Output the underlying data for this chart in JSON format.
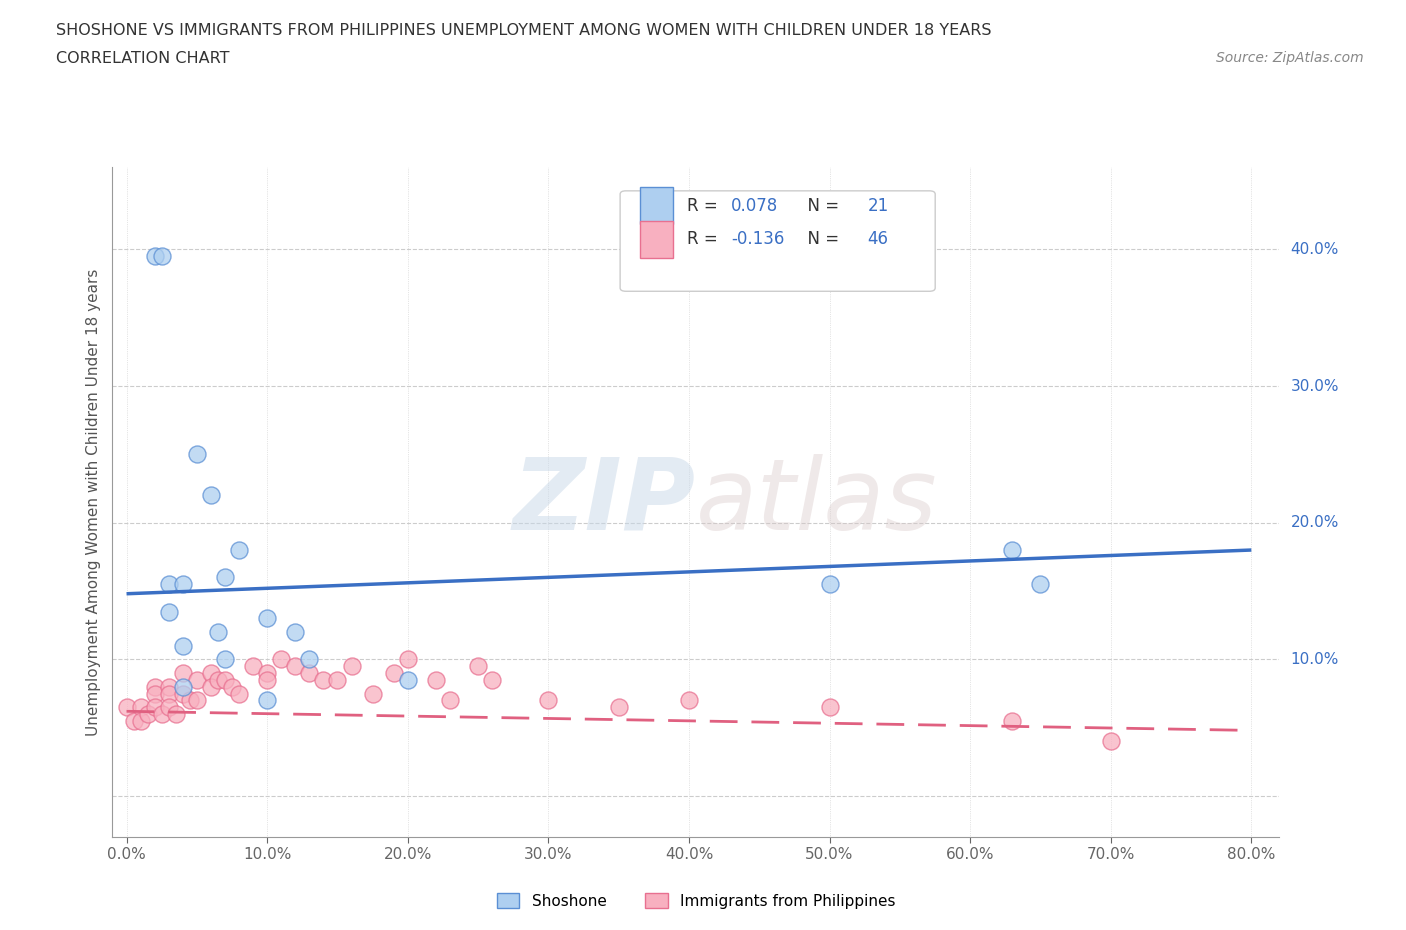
{
  "title_line1": "SHOSHONE VS IMMIGRANTS FROM PHILIPPINES UNEMPLOYMENT AMONG WOMEN WITH CHILDREN UNDER 18 YEARS",
  "title_line2": "CORRELATION CHART",
  "source_text": "Source: ZipAtlas.com",
  "ylabel": "Unemployment Among Women with Children Under 18 years",
  "xlim": [
    -0.01,
    0.82
  ],
  "ylim": [
    -0.03,
    0.46
  ],
  "xticks": [
    0.0,
    0.1,
    0.2,
    0.3,
    0.4,
    0.5,
    0.6,
    0.7,
    0.8
  ],
  "xticklabels": [
    "0.0%",
    "10.0%",
    "20.0%",
    "30.0%",
    "40.0%",
    "50.0%",
    "60.0%",
    "70.0%",
    "80.0%"
  ],
  "yticks": [
    0.0,
    0.1,
    0.2,
    0.3,
    0.4
  ],
  "yticklabels": [
    "",
    "10.0%",
    "20.0%",
    "30.0%",
    "40.0%"
  ],
  "shoshone_color": "#aecff0",
  "philippines_color": "#f8b0c0",
  "shoshone_edge_color": "#5b8fd4",
  "philippines_edge_color": "#e87090",
  "shoshone_line_color": "#3a6fc4",
  "philippines_line_color": "#e06080",
  "R_shoshone": 0.078,
  "N_shoshone": 21,
  "R_philippines": -0.136,
  "N_philippines": 46,
  "watermark_zip": "ZIP",
  "watermark_atlas": "atlas",
  "shoshone_x": [
    0.02,
    0.025,
    0.03,
    0.03,
    0.04,
    0.04,
    0.04,
    0.05,
    0.06,
    0.065,
    0.07,
    0.07,
    0.08,
    0.1,
    0.1,
    0.12,
    0.13,
    0.2,
    0.5,
    0.63,
    0.65
  ],
  "shoshone_y": [
    0.395,
    0.395,
    0.155,
    0.135,
    0.155,
    0.11,
    0.08,
    0.25,
    0.22,
    0.12,
    0.16,
    0.1,
    0.18,
    0.13,
    0.07,
    0.12,
    0.1,
    0.085,
    0.155,
    0.18,
    0.155
  ],
  "philippines_x": [
    0.0,
    0.005,
    0.01,
    0.01,
    0.015,
    0.02,
    0.02,
    0.02,
    0.025,
    0.03,
    0.03,
    0.03,
    0.035,
    0.04,
    0.04,
    0.045,
    0.05,
    0.05,
    0.06,
    0.06,
    0.065,
    0.07,
    0.075,
    0.08,
    0.09,
    0.1,
    0.1,
    0.11,
    0.12,
    0.13,
    0.14,
    0.15,
    0.16,
    0.175,
    0.19,
    0.2,
    0.22,
    0.23,
    0.25,
    0.26,
    0.3,
    0.35,
    0.4,
    0.5,
    0.63,
    0.7
  ],
  "philippines_y": [
    0.065,
    0.055,
    0.065,
    0.055,
    0.06,
    0.08,
    0.075,
    0.065,
    0.06,
    0.08,
    0.075,
    0.065,
    0.06,
    0.09,
    0.075,
    0.07,
    0.085,
    0.07,
    0.09,
    0.08,
    0.085,
    0.085,
    0.08,
    0.075,
    0.095,
    0.09,
    0.085,
    0.1,
    0.095,
    0.09,
    0.085,
    0.085,
    0.095,
    0.075,
    0.09,
    0.1,
    0.085,
    0.07,
    0.095,
    0.085,
    0.07,
    0.065,
    0.07,
    0.065,
    0.055,
    0.04
  ],
  "shoshone_line_x": [
    0.0,
    0.8
  ],
  "shoshone_line_y": [
    0.148,
    0.18
  ],
  "philippines_line_x": [
    0.0,
    0.8
  ],
  "philippines_line_y": [
    0.062,
    0.048
  ]
}
